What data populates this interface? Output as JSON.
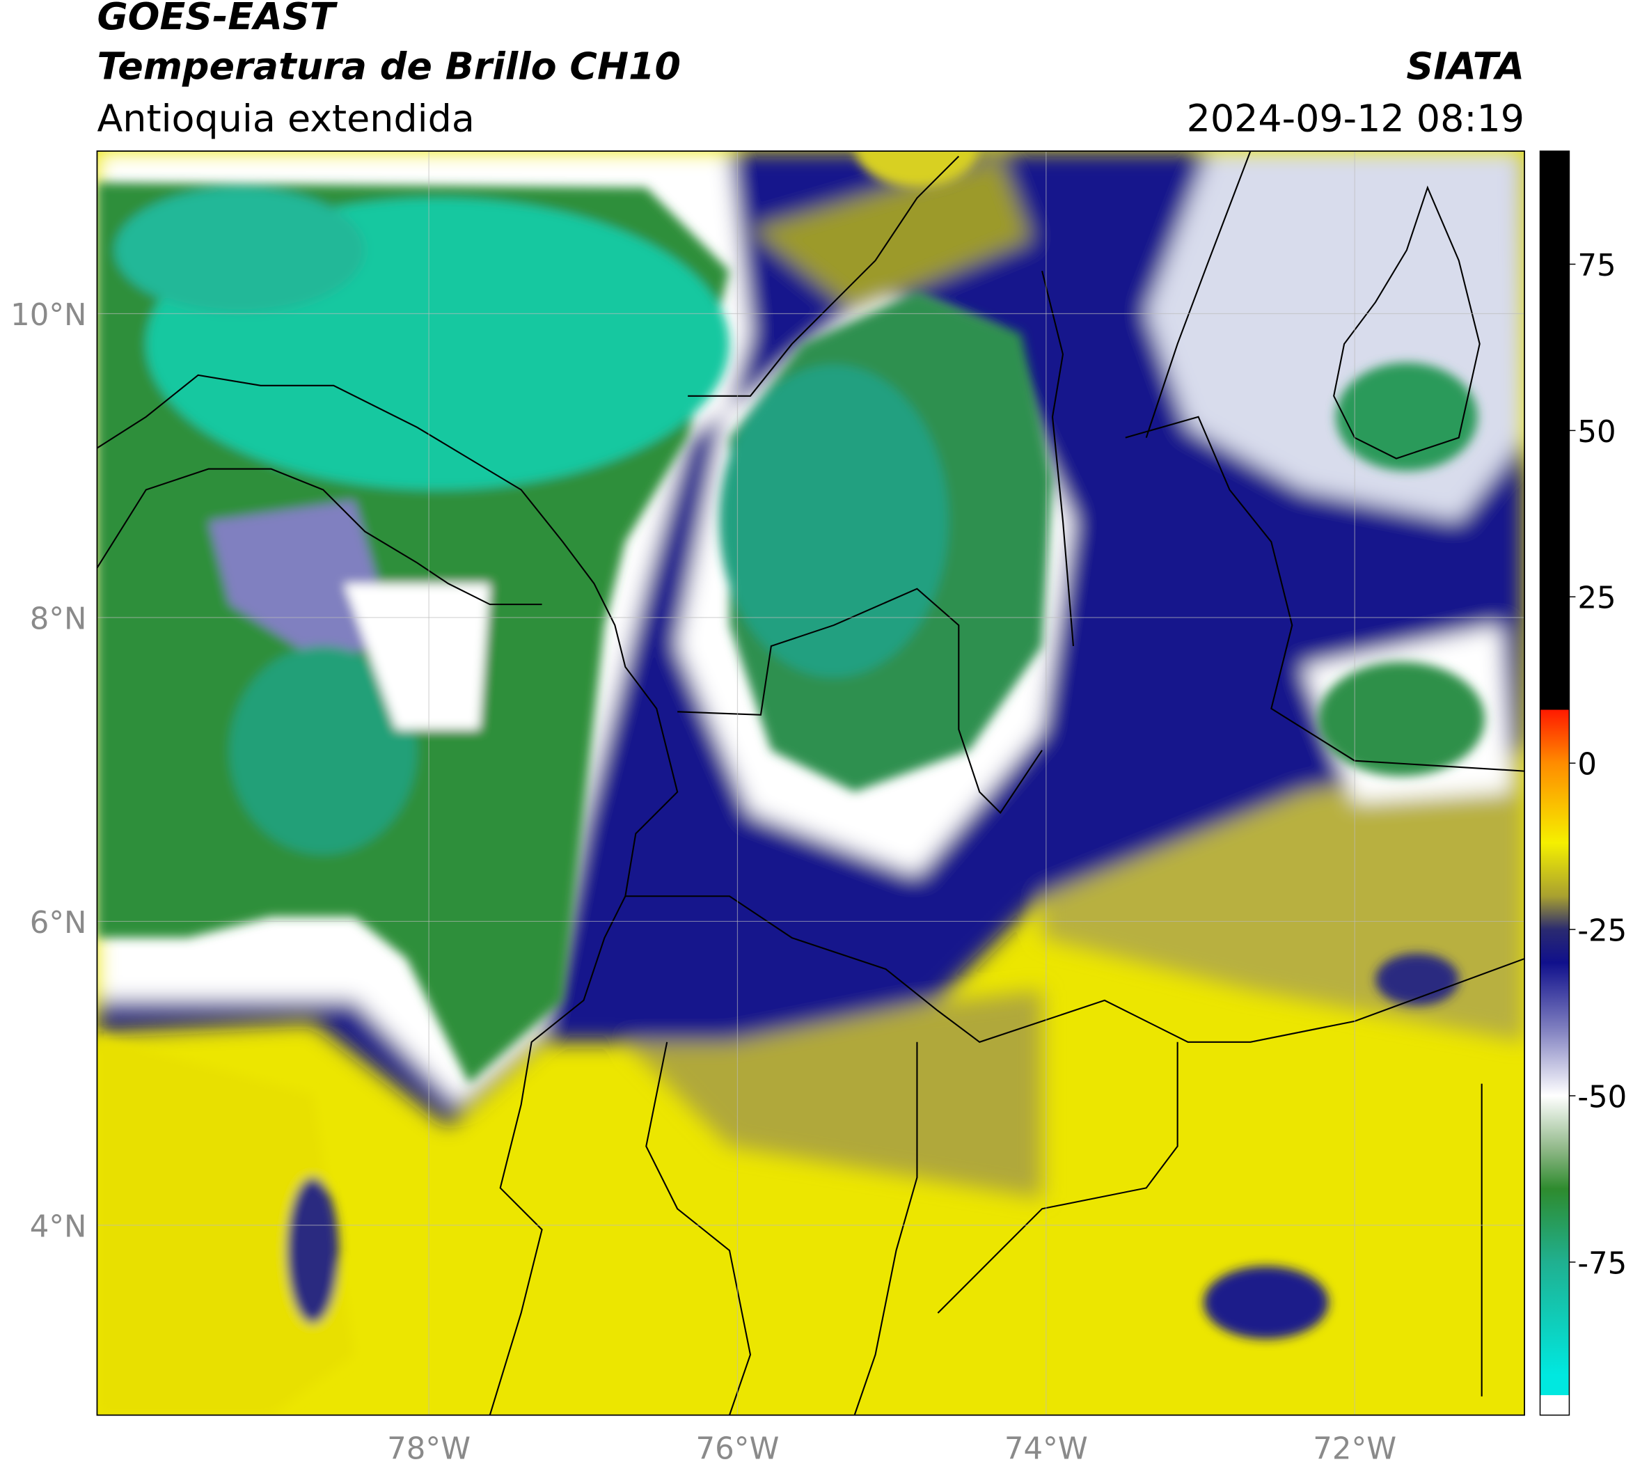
{
  "header": {
    "title": "GOES-EAST",
    "subtitle": "Temperatura de Brillo CH10",
    "region": "Antioquia extendida",
    "source": "SIATA",
    "datetime": "2024-09-12 08:19"
  },
  "map": {
    "xlim": [
      -80.15,
      -70.9
    ],
    "ylim": [
      2.75,
      11.07
    ],
    "xticks": [
      {
        "value": -78,
        "label": "78°W"
      },
      {
        "value": -76,
        "label": "76°W"
      },
      {
        "value": -74,
        "label": "74°W"
      },
      {
        "value": -72,
        "label": "72°W"
      }
    ],
    "yticks": [
      {
        "value": 10,
        "label": "10°N"
      },
      {
        "value": 8,
        "label": "8°N"
      },
      {
        "value": 6,
        "label": "6°N"
      },
      {
        "value": 4,
        "label": "4°N"
      }
    ],
    "grid": true
  },
  "colorbar": {
    "lim": [
      -98,
      92
    ],
    "ticks": [
      75,
      50,
      25,
      0,
      -25,
      -50,
      -75
    ],
    "stops": [
      {
        "value": 92,
        "color": "#000000"
      },
      {
        "value": 8,
        "color": "#000000"
      },
      {
        "value": 8,
        "color": "#ff1a00"
      },
      {
        "value": 0,
        "color": "#ff8c00"
      },
      {
        "value": -12,
        "color": "#f5f000"
      },
      {
        "value": -20,
        "color": "#a8a030"
      },
      {
        "value": -25,
        "color": "#2a2a70"
      },
      {
        "value": -30,
        "color": "#10108c"
      },
      {
        "value": -40,
        "color": "#8080c0"
      },
      {
        "value": -50,
        "color": "#ffffff"
      },
      {
        "value": -58,
        "color": "#90b888"
      },
      {
        "value": -64,
        "color": "#2e8b2e"
      },
      {
        "value": -75,
        "color": "#20b090"
      },
      {
        "value": -92,
        "color": "#00e8e0"
      },
      {
        "value": -95,
        "color": "#00e8e0"
      },
      {
        "value": -95,
        "color": "#ffffff"
      },
      {
        "value": -98,
        "color": "#ffffff"
      }
    ]
  }
}
